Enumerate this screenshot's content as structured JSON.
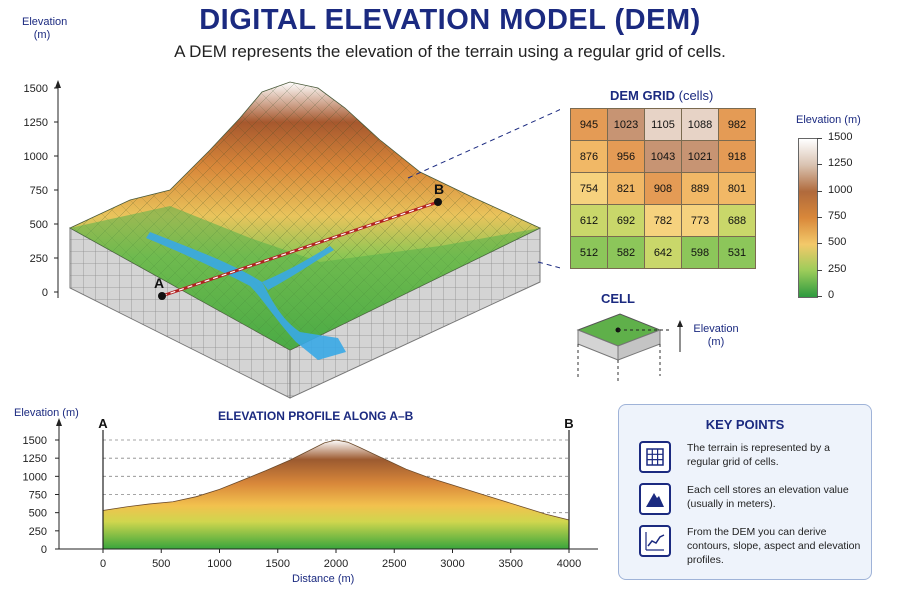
{
  "title": "DIGITAL ELEVATION MODEL (DEM)",
  "subtitle": "A DEM represents the elevation of the terrain using a regular grid of cells.",
  "block_axis": {
    "title": "Elevation\n(m)",
    "ticks": [
      "1500",
      "1250",
      "1000",
      "750",
      "500",
      "250",
      "0"
    ]
  },
  "points": {
    "a": "A",
    "b": "B"
  },
  "dem_grid": {
    "title": "DEM GRID",
    "subtitle": "(cells)",
    "rows": [
      [
        945,
        1023,
        1105,
        1088,
        982
      ],
      [
        876,
        956,
        1043,
        1021,
        918
      ],
      [
        754,
        821,
        908,
        889,
        801
      ],
      [
        612,
        692,
        782,
        773,
        688
      ],
      [
        512,
        582,
        642,
        598,
        531
      ]
    ]
  },
  "legend": {
    "title": "Elevation (m)",
    "labels": [
      "1500",
      "1250",
      "1000",
      "750",
      "500",
      "250",
      "0"
    ],
    "colors": [
      "#ffffff",
      "#d9c2b0",
      "#b06a3c",
      "#d9883a",
      "#f3c96a",
      "#9ccc5a",
      "#2e9a40"
    ]
  },
  "cell": {
    "title": "CELL",
    "elevation_label": "Elevation\n(m)"
  },
  "profile": {
    "title": "ELEVATION PROFILE ALONG A–B",
    "y_title": "Elevation (m)",
    "x_title": "Distance (m)",
    "y_ticks": [
      "1500",
      "1250",
      "1000",
      "750",
      "500",
      "250",
      "0"
    ],
    "x_ticks": [
      "0",
      "500",
      "1000",
      "1500",
      "2000",
      "2500",
      "3000",
      "3500",
      "4000"
    ],
    "start_label": "A",
    "end_label": "B"
  },
  "key_points": {
    "title": "KEY POINTS",
    "items": [
      {
        "icon": "grid-icon",
        "text": "The terrain is represented by a regular grid of cells."
      },
      {
        "icon": "mountain-icon",
        "text": "Each cell stores an elevation value (usually in meters)."
      },
      {
        "icon": "chart-icon",
        "text": "From the DEM you can derive contours, slope, aspect and elevation profiles."
      }
    ]
  },
  "chart_data": {
    "type": "area",
    "title": "ELEVATION PROFILE ALONG A–B",
    "xlabel": "Distance (m)",
    "ylabel": "Elevation (m)",
    "xlim": [
      0,
      4000
    ],
    "ylim": [
      0,
      1500
    ],
    "x": [
      0,
      200,
      400,
      600,
      800,
      1000,
      1200,
      1400,
      1600,
      1800,
      1900,
      2000,
      2100,
      2200,
      2400,
      2600,
      2800,
      3000,
      3200,
      3400,
      3600,
      3800,
      4000
    ],
    "y": [
      530,
      580,
      620,
      650,
      720,
      820,
      950,
      1080,
      1220,
      1380,
      1460,
      1500,
      1470,
      1400,
      1250,
      1100,
      980,
      880,
      780,
      680,
      580,
      480,
      400
    ]
  }
}
